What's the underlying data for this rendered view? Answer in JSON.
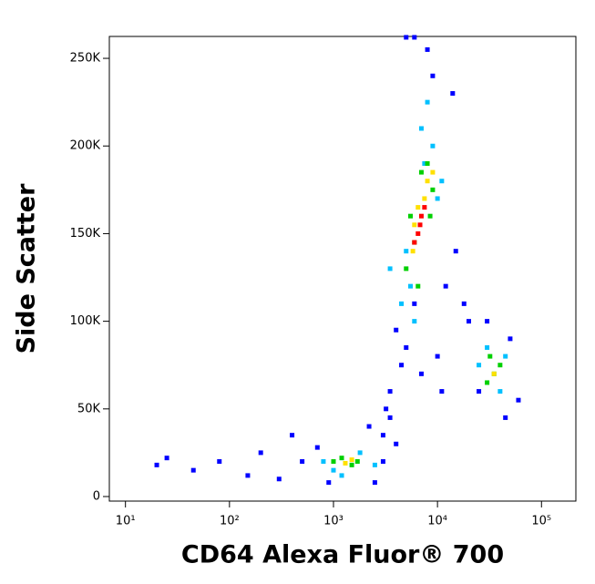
{
  "chart_data": {
    "type": "scatter",
    "x_label": "CD64 Alexa Fluor® 700",
    "y_label": "Side Scatter",
    "xscale": "log",
    "xlim": [
      7,
      214000
    ],
    "xticks": [
      {
        "value": 10,
        "label": "10¹"
      },
      {
        "value": 100,
        "label": "10²"
      },
      {
        "value": 1000,
        "label": "10³"
      },
      {
        "value": 10000,
        "label": "10⁴"
      },
      {
        "value": 100000,
        "label": "10⁵"
      }
    ],
    "ylim": [
      -2600,
      262500
    ],
    "yticks": [
      0,
      {
        "value": 50000,
        "label": "50K"
      },
      {
        "value": 100000,
        "label": "100K"
      },
      {
        "value": 150000,
        "label": "150K"
      },
      {
        "value": 200000,
        "label": "200K"
      },
      {
        "value": 250000,
        "label": "250K"
      }
    ],
    "series": [
      {
        "color": "#0000ff",
        "x": [
          20,
          25,
          45,
          80,
          150,
          200,
          300,
          500,
          700,
          2500,
          3000,
          4000,
          2200,
          3200,
          3500,
          4500,
          5000,
          4000,
          3500,
          6000,
          12000,
          15000,
          10000,
          20000,
          25000,
          50000,
          60000,
          45000,
          3000,
          8000,
          9000,
          14000,
          11000,
          7000,
          400,
          900,
          5000,
          18000,
          30000,
          6000
        ],
        "values": [
          18000,
          22000,
          15000,
          20000,
          12000,
          25000,
          10000,
          20000,
          28000,
          8000,
          35000,
          30000,
          40000,
          50000,
          60000,
          75000,
          85000,
          95000,
          45000,
          110000,
          120000,
          140000,
          80000,
          100000,
          60000,
          90000,
          55000,
          45000,
          20000,
          255000,
          240000,
          230000,
          60000,
          70000,
          35000,
          8000,
          262000,
          110000,
          100000,
          262000
        ]
      },
      {
        "color": "#00c0ff",
        "x": [
          800,
          1000,
          1800,
          2500,
          1200,
          4500,
          5500,
          7000,
          9000,
          10000,
          8000,
          6000,
          25000,
          40000,
          30000,
          45000,
          3500,
          11000,
          7500,
          5000
        ],
        "values": [
          20000,
          15000,
          25000,
          18000,
          12000,
          110000,
          120000,
          210000,
          200000,
          170000,
          225000,
          100000,
          75000,
          60000,
          85000,
          80000,
          130000,
          180000,
          190000,
          140000
        ]
      },
      {
        "color": "#00d000",
        "x": [
          1200,
          1500,
          1700,
          1000,
          5000,
          6000,
          8000,
          9000,
          7000,
          6500,
          35000,
          30000,
          40000,
          5500,
          8500,
          32000
        ],
        "values": [
          22000,
          18000,
          20000,
          20000,
          130000,
          145000,
          190000,
          175000,
          185000,
          120000,
          70000,
          65000,
          75000,
          160000,
          160000,
          80000
        ]
      },
      {
        "color": "#ffe000",
        "x": [
          1300,
          1500,
          6000,
          7500,
          8000,
          6500,
          5800,
          35000,
          9000
        ],
        "values": [
          19000,
          21000,
          155000,
          170000,
          180000,
          165000,
          140000,
          70000,
          185000
        ]
      },
      {
        "color": "#ff0000",
        "x": [
          6500,
          7000,
          6000,
          7500,
          6800
        ],
        "values": [
          150000,
          160000,
          145000,
          165000,
          155000
        ]
      }
    ]
  }
}
